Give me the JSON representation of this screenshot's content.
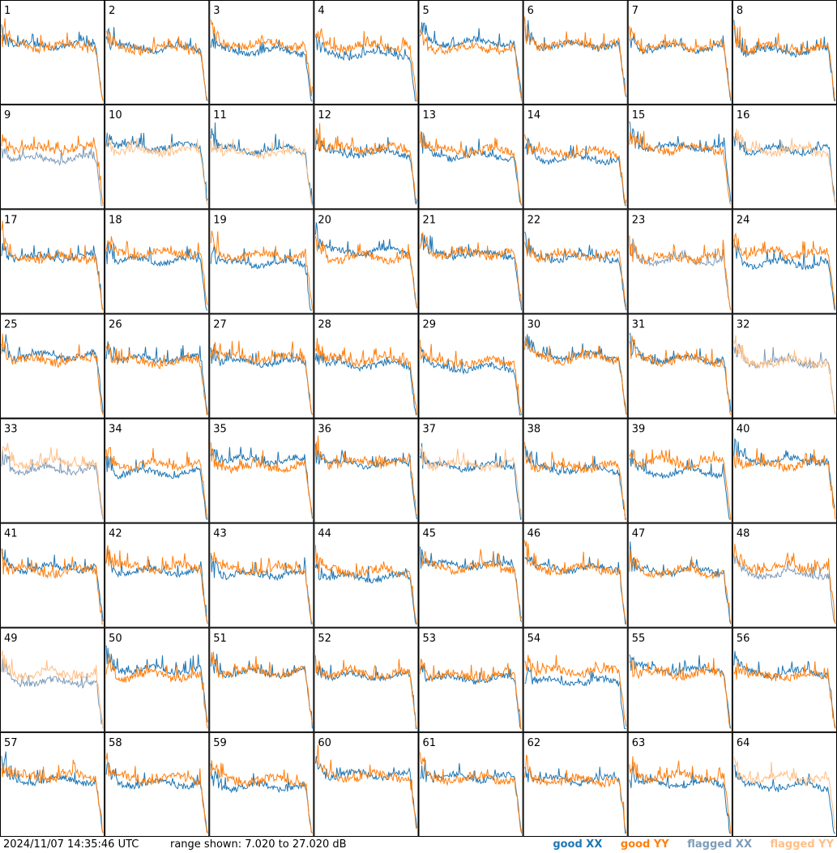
{
  "footer": {
    "timestamp": "2024/11/07 14:35:46 UTC",
    "range_text": "range shown: 7.020 to 27.020 dB"
  },
  "legend": {
    "good_xx": "good XX",
    "good_yy": "good YY",
    "flagged_xx": "flagged XX",
    "flagged_yy": "flagged YY"
  },
  "colors": {
    "good_xx": "#1f77b4",
    "good_yy": "#ff7f0e",
    "flagged_xx": "#7f9cb8",
    "flagged_yy": "#ffbf87"
  },
  "chart_data": {
    "type": "line",
    "layout": "8x8 small multiples",
    "y_range_db": [
      7.02,
      27.02
    ],
    "tiles": [
      {
        "id": "1",
        "xx": "good",
        "yy": "good"
      },
      {
        "id": "2",
        "xx": "good",
        "yy": "good"
      },
      {
        "id": "3",
        "xx": "good",
        "yy": "good"
      },
      {
        "id": "4",
        "xx": "good",
        "yy": "good"
      },
      {
        "id": "5",
        "xx": "good",
        "yy": "good"
      },
      {
        "id": "6",
        "xx": "good",
        "yy": "good"
      },
      {
        "id": "7",
        "xx": "good",
        "yy": "good"
      },
      {
        "id": "8",
        "xx": "good",
        "yy": "good"
      },
      {
        "id": "9",
        "xx": "flagged",
        "yy": "good"
      },
      {
        "id": "10",
        "xx": "good",
        "yy": "flagged"
      },
      {
        "id": "11",
        "xx": "good",
        "yy": "flagged"
      },
      {
        "id": "12",
        "xx": "good",
        "yy": "good"
      },
      {
        "id": "13",
        "xx": "good",
        "yy": "good"
      },
      {
        "id": "14",
        "xx": "good",
        "yy": "good"
      },
      {
        "id": "15",
        "xx": "good",
        "yy": "good"
      },
      {
        "id": "16",
        "xx": "good",
        "yy": "flagged"
      },
      {
        "id": "17",
        "xx": "good",
        "yy": "good"
      },
      {
        "id": "18",
        "xx": "good",
        "yy": "good"
      },
      {
        "id": "19",
        "xx": "good",
        "yy": "good"
      },
      {
        "id": "20",
        "xx": "good",
        "yy": "good"
      },
      {
        "id": "21",
        "xx": "good",
        "yy": "good"
      },
      {
        "id": "22",
        "xx": "good",
        "yy": "good"
      },
      {
        "id": "23",
        "xx": "flagged",
        "yy": "good"
      },
      {
        "id": "24",
        "xx": "good",
        "yy": "good"
      },
      {
        "id": "25",
        "xx": "good",
        "yy": "good"
      },
      {
        "id": "26",
        "xx": "good",
        "yy": "good"
      },
      {
        "id": "27",
        "xx": "good",
        "yy": "good"
      },
      {
        "id": "28",
        "xx": "good",
        "yy": "good"
      },
      {
        "id": "29",
        "xx": "good",
        "yy": "good"
      },
      {
        "id": "30",
        "xx": "good",
        "yy": "good"
      },
      {
        "id": "31",
        "xx": "good",
        "yy": "good"
      },
      {
        "id": "32",
        "xx": "flagged",
        "yy": "flagged"
      },
      {
        "id": "33",
        "xx": "flagged",
        "yy": "flagged"
      },
      {
        "id": "34",
        "xx": "good",
        "yy": "good"
      },
      {
        "id": "35",
        "xx": "good",
        "yy": "good"
      },
      {
        "id": "36",
        "xx": "good",
        "yy": "good"
      },
      {
        "id": "37",
        "xx": "good",
        "yy": "flagged"
      },
      {
        "id": "38",
        "xx": "good",
        "yy": "good"
      },
      {
        "id": "39",
        "xx": "good",
        "yy": "good"
      },
      {
        "id": "40",
        "xx": "good",
        "yy": "good"
      },
      {
        "id": "41",
        "xx": "good",
        "yy": "good"
      },
      {
        "id": "42",
        "xx": "good",
        "yy": "good"
      },
      {
        "id": "43",
        "xx": "good",
        "yy": "good"
      },
      {
        "id": "44",
        "xx": "good",
        "yy": "good"
      },
      {
        "id": "45",
        "xx": "good",
        "yy": "good"
      },
      {
        "id": "46",
        "xx": "good",
        "yy": "good"
      },
      {
        "id": "47",
        "xx": "good",
        "yy": "good"
      },
      {
        "id": "48",
        "xx": "flagged",
        "yy": "good"
      },
      {
        "id": "49",
        "xx": "flagged",
        "yy": "flagged"
      },
      {
        "id": "50",
        "xx": "good",
        "yy": "good"
      },
      {
        "id": "51",
        "xx": "good",
        "yy": "good"
      },
      {
        "id": "52",
        "xx": "good",
        "yy": "good"
      },
      {
        "id": "53",
        "xx": "good",
        "yy": "good"
      },
      {
        "id": "54",
        "xx": "good",
        "yy": "good"
      },
      {
        "id": "55",
        "xx": "good",
        "yy": "good"
      },
      {
        "id": "56",
        "xx": "good",
        "yy": "good"
      },
      {
        "id": "57",
        "xx": "good",
        "yy": "good"
      },
      {
        "id": "58",
        "xx": "good",
        "yy": "good"
      },
      {
        "id": "59",
        "xx": "good",
        "yy": "good"
      },
      {
        "id": "60",
        "xx": "good",
        "yy": "good"
      },
      {
        "id": "61",
        "xx": "good",
        "yy": "good"
      },
      {
        "id": "62",
        "xx": "good",
        "yy": "good"
      },
      {
        "id": "63",
        "xx": "good",
        "yy": "good"
      },
      {
        "id": "64",
        "xx": "good",
        "yy": "flagged"
      }
    ]
  }
}
